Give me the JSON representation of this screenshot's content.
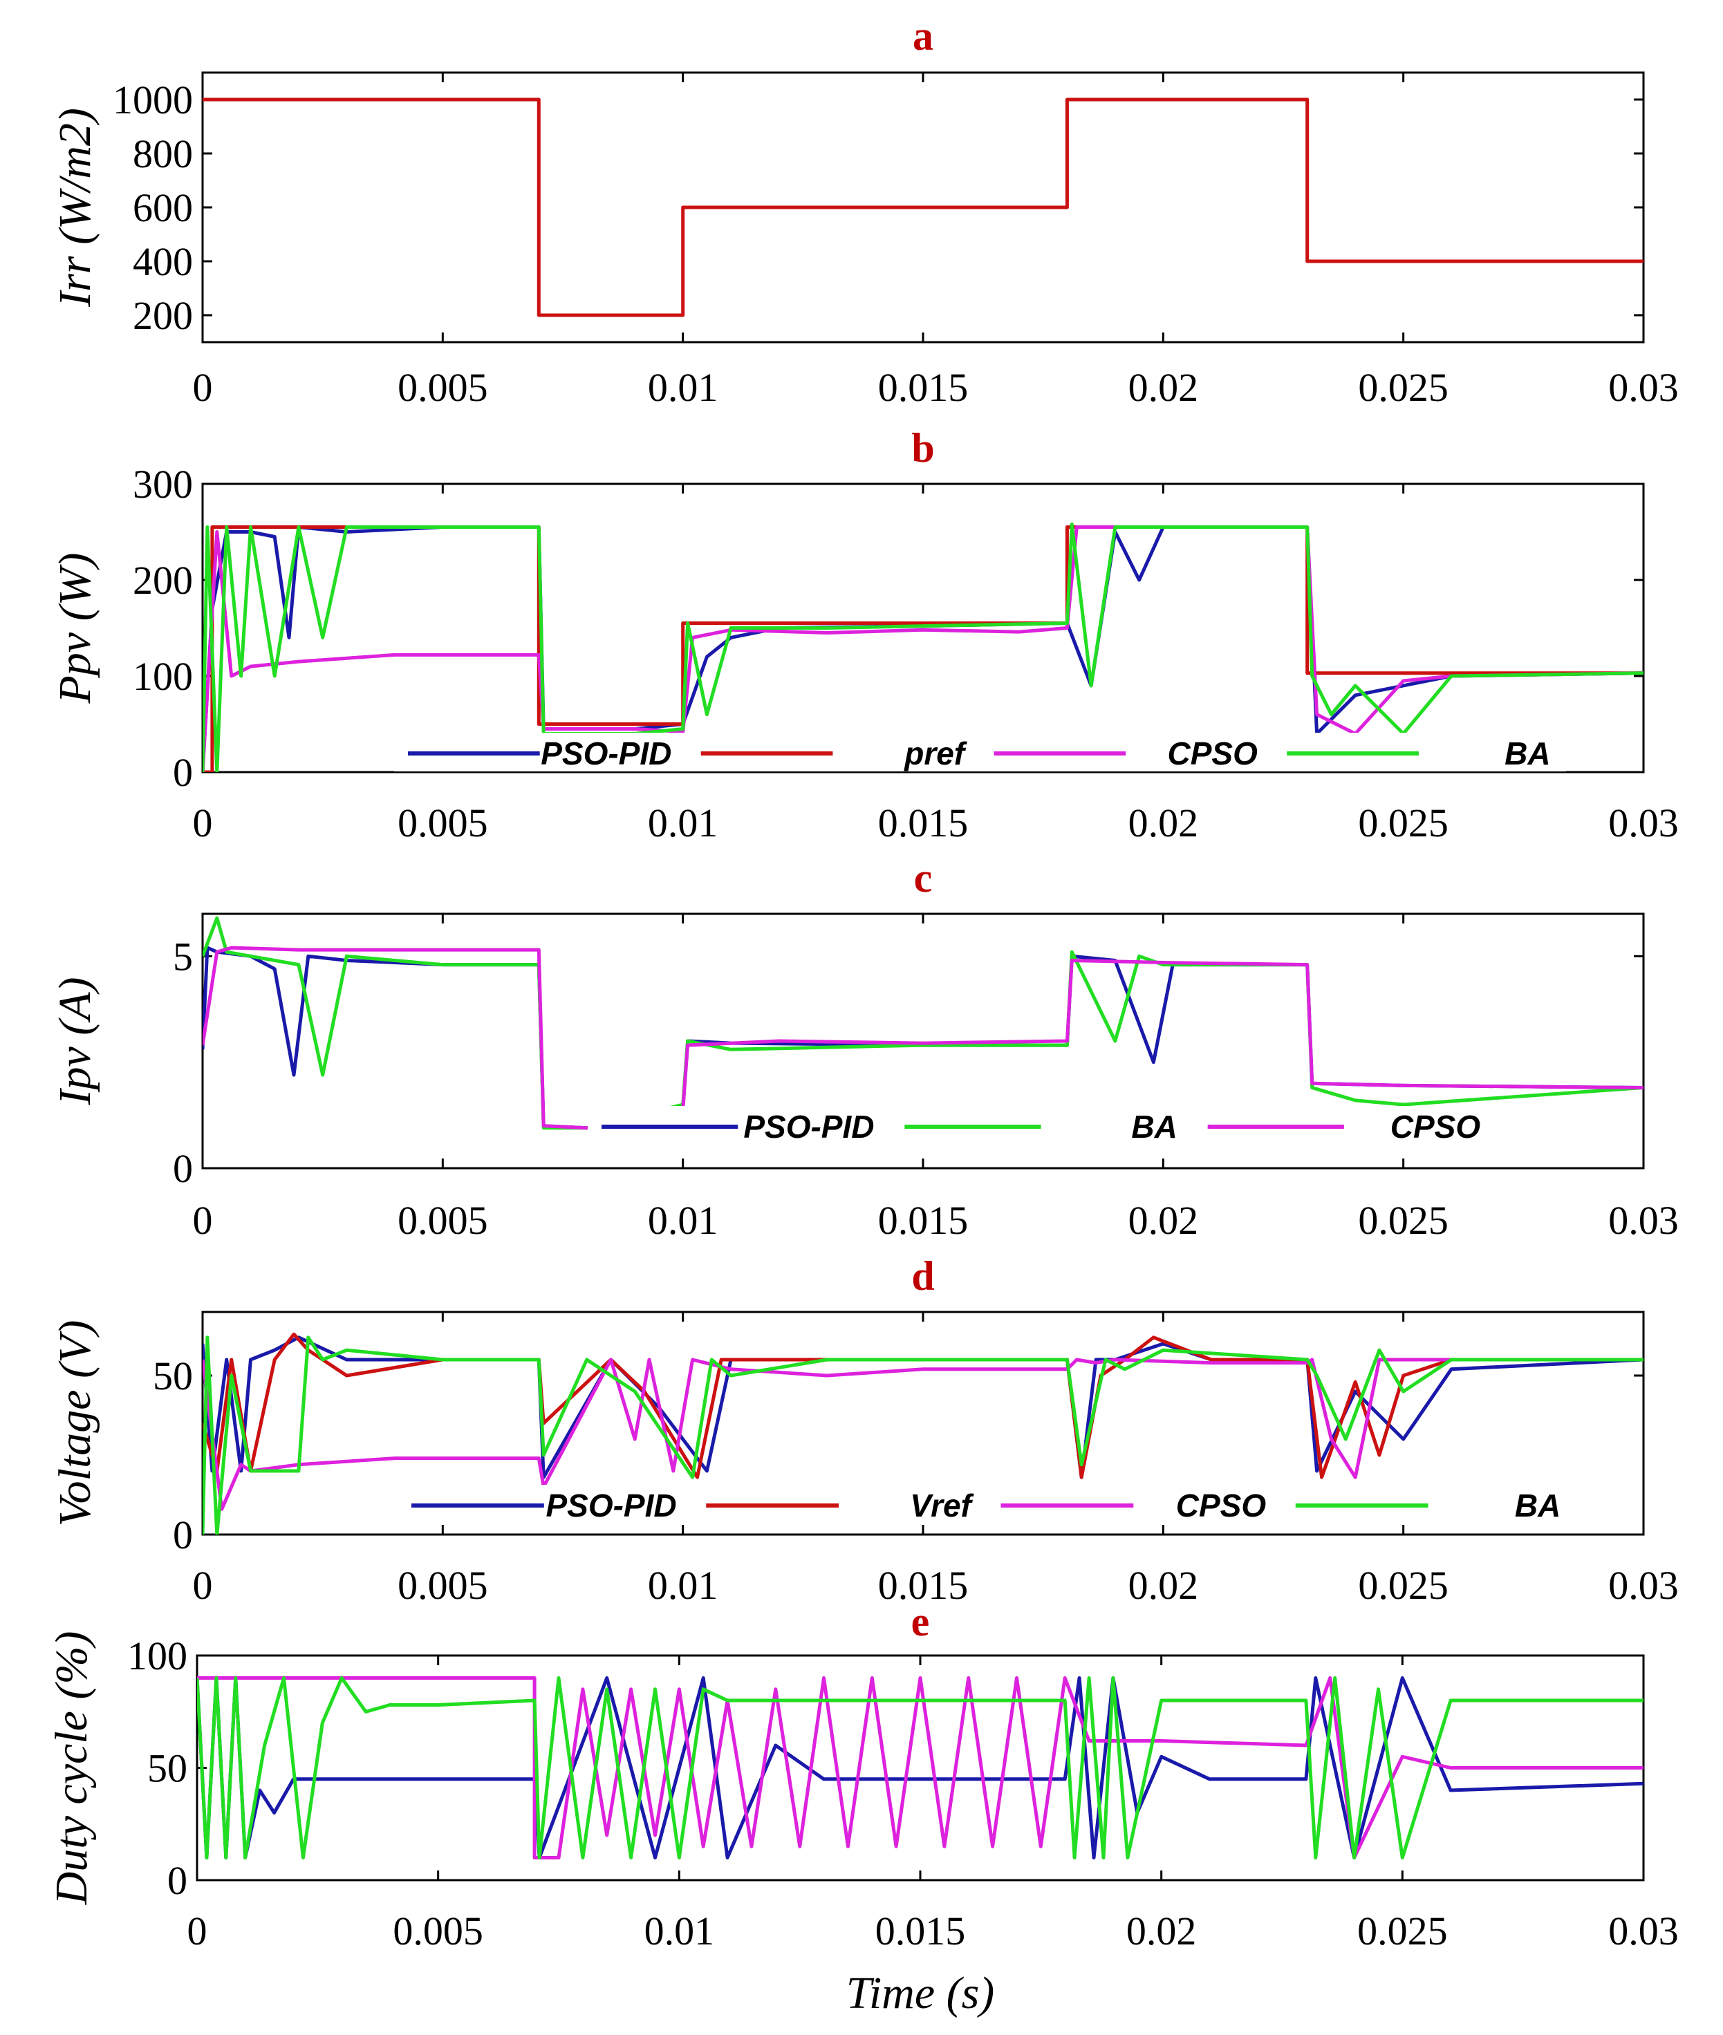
{
  "chart_data": [
    {
      "type": "line",
      "panel": "a",
      "title": "a",
      "xlabel": "",
      "ylabel": "Irr (W/m2)",
      "xlim": [
        0,
        0.03
      ],
      "ylim": [
        100,
        1100
      ],
      "xticks": [
        "0",
        "0.005",
        "0.01",
        "0.015",
        "0.02",
        "0.025",
        "0.03"
      ],
      "yticks": [
        "200",
        "400",
        "600",
        "800",
        "1000"
      ],
      "series": [
        {
          "name": "Irr",
          "color": "#cc1111",
          "x": [
            0,
            0.007,
            0.007,
            0.01,
            0.01,
            0.018,
            0.018,
            0.023,
            0.023,
            0.03
          ],
          "y": [
            1000,
            1000,
            200,
            200,
            600,
            600,
            1000,
            1000,
            400,
            400
          ]
        }
      ]
    },
    {
      "type": "line",
      "panel": "b",
      "title": "b",
      "xlabel": "",
      "ylabel": "Ppv (W)",
      "xlim": [
        0,
        0.03
      ],
      "ylim": [
        0,
        300
      ],
      "xticks": [
        "0",
        "0.005",
        "0.01",
        "0.015",
        "0.02",
        "0.025",
        "0.03"
      ],
      "yticks": [
        "0",
        "100",
        "200",
        "300"
      ],
      "legend": [
        "PSO-PID",
        "pref",
        "CPSO",
        "BA"
      ],
      "series": [
        {
          "name": "PSO-PID",
          "color": "#1a1aaa",
          "x": [
            0,
            0.0002,
            0.0005,
            0.001,
            0.0015,
            0.0018,
            0.002,
            0.003,
            0.005,
            0.007,
            0.0071,
            0.009,
            0.01,
            0.0105,
            0.011,
            0.012,
            0.015,
            0.018,
            0.0185,
            0.019,
            0.0195,
            0.02,
            0.021,
            0.023,
            0.0232,
            0.024,
            0.025,
            0.026,
            0.03
          ],
          "y": [
            0,
            170,
            250,
            250,
            245,
            140,
            255,
            250,
            255,
            255,
            45,
            45,
            50,
            120,
            140,
            150,
            152,
            155,
            90,
            250,
            200,
            255,
            255,
            255,
            40,
            80,
            90,
            100,
            103
          ]
        },
        {
          "name": "pref",
          "color": "#cc1111",
          "x": [
            0,
            0.0002,
            0.0002,
            0.007,
            0.007,
            0.01,
            0.01,
            0.018,
            0.018,
            0.023,
            0.023,
            0.03
          ],
          "y": [
            0,
            0,
            255,
            255,
            50,
            50,
            155,
            155,
            255,
            255,
            103,
            103
          ]
        },
        {
          "name": "CPSO",
          "color": "#dd22dd",
          "x": [
            0,
            0.0003,
            0.0006,
            0.001,
            0.002,
            0.004,
            0.007,
            0.0071,
            0.009,
            0.01,
            0.0102,
            0.011,
            0.013,
            0.015,
            0.017,
            0.018,
            0.0182,
            0.02,
            0.023,
            0.0232,
            0.024,
            0.025,
            0.026,
            0.03
          ],
          "y": [
            0,
            250,
            100,
            110,
            115,
            122,
            122,
            45,
            45,
            42,
            140,
            148,
            145,
            148,
            146,
            150,
            255,
            255,
            255,
            60,
            40,
            95,
            100,
            103
          ]
        },
        {
          "name": "BA",
          "color": "#22dd22",
          "x": [
            0,
            0.0001,
            0.0003,
            0.0005,
            0.0008,
            0.001,
            0.0015,
            0.002,
            0.0025,
            0.003,
            0.004,
            0.007,
            0.0071,
            0.009,
            0.01,
            0.0101,
            0.0105,
            0.011,
            0.013,
            0.018,
            0.0181,
            0.0185,
            0.019,
            0.02,
            0.023,
            0.0231,
            0.0235,
            0.024,
            0.025,
            0.026,
            0.03
          ],
          "y": [
            0,
            255,
            0,
            255,
            100,
            255,
            100,
            255,
            140,
            255,
            255,
            255,
            40,
            40,
            45,
            155,
            60,
            150,
            150,
            155,
            258,
            90,
            255,
            255,
            255,
            100,
            60,
            90,
            40,
            100,
            103
          ]
        }
      ]
    },
    {
      "type": "line",
      "panel": "c",
      "title": "c",
      "xlabel": "",
      "ylabel": "Ipv  (A)",
      "xlim": [
        0,
        0.03
      ],
      "ylim": [
        0,
        6
      ],
      "xticks": [
        "0",
        "0.005",
        "0.01",
        "0.015",
        "0.02",
        "0.025",
        "0.03"
      ],
      "yticks": [
        "0",
        "5"
      ],
      "legend": [
        "PSO-PID",
        "BA",
        "CPSO"
      ],
      "series": [
        {
          "name": "PSO-PID",
          "color": "#1a1aaa",
          "x": [
            0,
            0.0001,
            0.0003,
            0.001,
            0.0015,
            0.0019,
            0.0022,
            0.003,
            0.005,
            0.007,
            0.0071,
            0.008,
            0.01,
            0.0101,
            0.011,
            0.015,
            0.018,
            0.0181,
            0.019,
            0.0198,
            0.0202,
            0.021,
            0.023,
            0.0231,
            0.025,
            0.03
          ],
          "y": [
            2.8,
            5.2,
            5.1,
            5.0,
            4.7,
            2.2,
            5.0,
            4.9,
            4.8,
            4.8,
            1.0,
            0.95,
            1.4,
            3.0,
            2.95,
            2.9,
            2.9,
            5.0,
            4.9,
            2.5,
            4.8,
            4.8,
            4.8,
            2.0,
            1.95,
            1.9
          ]
        },
        {
          "name": "BA",
          "color": "#22dd22",
          "x": [
            0,
            0.0003,
            0.0005,
            0.001,
            0.002,
            0.0025,
            0.003,
            0.005,
            0.007,
            0.0071,
            0.008,
            0.01,
            0.0101,
            0.011,
            0.015,
            0.018,
            0.0181,
            0.019,
            0.0195,
            0.02,
            0.023,
            0.0231,
            0.024,
            0.025,
            0.03
          ],
          "y": [
            5.0,
            5.9,
            5.1,
            5.0,
            4.8,
            2.2,
            5.0,
            4.8,
            4.8,
            0.95,
            0.95,
            1.5,
            3.0,
            2.8,
            2.9,
            2.9,
            5.1,
            3.0,
            5.0,
            4.8,
            4.8,
            1.9,
            1.6,
            1.5,
            1.9
          ]
        },
        {
          "name": "CPSO",
          "color": "#dd22dd",
          "x": [
            0,
            0.0003,
            0.0006,
            0.002,
            0.005,
            0.007,
            0.0071,
            0.008,
            0.01,
            0.0101,
            0.012,
            0.015,
            0.018,
            0.0181,
            0.02,
            0.023,
            0.0231,
            0.025,
            0.03
          ],
          "y": [
            2.9,
            5.1,
            5.2,
            5.15,
            5.15,
            5.15,
            1.0,
            0.95,
            1.4,
            2.9,
            3.0,
            2.95,
            3.0,
            4.9,
            4.85,
            4.8,
            2.0,
            1.95,
            1.9
          ]
        }
      ]
    },
    {
      "type": "line",
      "panel": "d",
      "title": "d",
      "xlabel": "",
      "ylabel": "Voltage (V)",
      "xlim": [
        0,
        0.03
      ],
      "ylim": [
        0,
        70
      ],
      "xticks": [
        "0",
        "0.005",
        "0.01",
        "0.015",
        "0.02",
        "0.025",
        "0.03"
      ],
      "yticks": [
        "0",
        "50"
      ],
      "legend": [
        "PSO-PID",
        "Vref",
        "CPSO",
        "BA"
      ],
      "series": [
        {
          "name": "PSO-PID",
          "color": "#1a1aaa",
          "x": [
            0,
            0.0002,
            0.0005,
            0.0008,
            0.001,
            0.0015,
            0.002,
            0.003,
            0.005,
            0.007,
            0.0071,
            0.0085,
            0.0095,
            0.0105,
            0.011,
            0.013,
            0.018,
            0.0183,
            0.0186,
            0.019,
            0.02,
            0.021,
            0.023,
            0.0232,
            0.024,
            0.025,
            0.026,
            0.03
          ],
          "y": [
            60,
            20,
            55,
            20,
            55,
            58,
            62,
            55,
            55,
            55,
            18,
            55,
            40,
            20,
            55,
            55,
            55,
            18,
            55,
            55,
            60,
            55,
            55,
            20,
            45,
            30,
            52,
            55
          ]
        },
        {
          "name": "Vref",
          "color": "#cc1111",
          "x": [
            0,
            0.0003,
            0.0006,
            0.001,
            0.0015,
            0.0019,
            0.0022,
            0.003,
            0.005,
            0.007,
            0.0071,
            0.0085,
            0.0092,
            0.0103,
            0.0108,
            0.013,
            0.018,
            0.0183,
            0.0187,
            0.0192,
            0.0198,
            0.021,
            0.023,
            0.0233,
            0.024,
            0.0245,
            0.025,
            0.026,
            0.03
          ],
          "y": [
            35,
            20,
            55,
            20,
            55,
            63,
            58,
            50,
            55,
            55,
            35,
            55,
            45,
            18,
            55,
            55,
            55,
            18,
            50,
            55,
            62,
            55,
            55,
            18,
            48,
            25,
            50,
            55,
            55
          ]
        },
        {
          "name": "CPSO",
          "color": "#dd22dd",
          "x": [
            0,
            0.0004,
            0.0008,
            0.001,
            0.002,
            0.004,
            0.007,
            0.0071,
            0.0085,
            0.009,
            0.0093,
            0.0098,
            0.0102,
            0.011,
            0.013,
            0.015,
            0.018,
            0.0182,
            0.0186,
            0.019,
            0.021,
            0.023,
            0.0231,
            0.0235,
            0.024,
            0.0245,
            0.026,
            0.03
          ],
          "y": [
            55,
            8,
            22,
            20,
            22,
            24,
            24,
            15,
            55,
            30,
            55,
            20,
            55,
            52,
            50,
            52,
            52,
            55,
            54,
            55,
            54,
            54,
            55,
            30,
            18,
            55,
            55,
            55
          ]
        },
        {
          "name": "BA",
          "color": "#22dd22",
          "x": [
            0,
            0.0001,
            0.0003,
            0.0006,
            0.001,
            0.002,
            0.0022,
            0.0025,
            0.003,
            0.005,
            0.007,
            0.0071,
            0.008,
            0.009,
            0.0102,
            0.0106,
            0.011,
            0.013,
            0.018,
            0.0183,
            0.0188,
            0.0192,
            0.02,
            0.023,
            0.0232,
            0.0238,
            0.0245,
            0.025,
            0.026,
            0.03
          ],
          "y": [
            0,
            62,
            0,
            50,
            20,
            20,
            62,
            55,
            58,
            55,
            55,
            25,
            55,
            45,
            18,
            55,
            50,
            55,
            55,
            22,
            55,
            52,
            58,
            55,
            50,
            30,
            58,
            45,
            55,
            55
          ]
        }
      ]
    },
    {
      "type": "line",
      "panel": "e",
      "title": "e",
      "xlabel": "Time (s)",
      "ylabel": "Duty cycle (%)",
      "xlim": [
        0,
        0.03
      ],
      "ylim": [
        0,
        100
      ],
      "xticks": [
        "0",
        "0.005",
        "0.01",
        "0.015",
        "0.02",
        "0.025",
        "0.03"
      ],
      "yticks": [
        "0",
        "50",
        "100"
      ],
      "series": [
        {
          "name": "PSO-PID",
          "color": "#1a1aaa",
          "x": [
            0,
            0.0002,
            0.0004,
            0.0006,
            0.0008,
            0.001,
            0.0013,
            0.0016,
            0.002,
            0.003,
            0.007,
            0.0071,
            0.0085,
            0.0095,
            0.0105,
            0.011,
            0.012,
            0.013,
            0.018,
            0.0183,
            0.0186,
            0.019,
            0.0195,
            0.02,
            0.021,
            0.023,
            0.0232,
            0.024,
            0.025,
            0.026,
            0.03
          ],
          "y": [
            90,
            10,
            90,
            10,
            90,
            10,
            40,
            30,
            45,
            45,
            45,
            10,
            90,
            10,
            90,
            10,
            60,
            45,
            45,
            90,
            10,
            90,
            30,
            55,
            45,
            45,
            90,
            10,
            90,
            40,
            43
          ]
        },
        {
          "name": "CPSO",
          "color": "#dd22dd",
          "x": [
            0,
            0.0003,
            0.0003,
            0.007,
            0.007,
            0.0075,
            0.008,
            0.0085,
            0.009,
            0.0095,
            0.01,
            0.0105,
            0.011,
            0.0115,
            0.012,
            0.0125,
            0.013,
            0.0135,
            0.014,
            0.0145,
            0.015,
            0.0155,
            0.016,
            0.0165,
            0.017,
            0.0175,
            0.018,
            0.0185,
            0.02,
            0.023,
            0.0235,
            0.024,
            0.025,
            0.026,
            0.03
          ],
          "y": [
            90,
            90,
            90,
            90,
            10,
            10,
            85,
            20,
            85,
            20,
            85,
            15,
            80,
            15,
            85,
            15,
            90,
            15,
            90,
            15,
            90,
            15,
            90,
            15,
            90,
            15,
            90,
            62,
            62,
            60,
            90,
            10,
            55,
            50,
            50
          ]
        },
        {
          "name": "BA",
          "color": "#22dd22",
          "x": [
            0,
            0.0002,
            0.0004,
            0.0006,
            0.0008,
            0.001,
            0.0014,
            0.0018,
            0.0022,
            0.0026,
            0.003,
            0.0035,
            0.004,
            0.005,
            0.007,
            0.0071,
            0.0075,
            0.008,
            0.0085,
            0.009,
            0.0095,
            0.01,
            0.0105,
            0.011,
            0.012,
            0.014,
            0.018,
            0.0182,
            0.0185,
            0.0188,
            0.019,
            0.0193,
            0.02,
            0.023,
            0.0232,
            0.0236,
            0.024,
            0.0245,
            0.025,
            0.026,
            0.027,
            0.03
          ],
          "y": [
            90,
            10,
            90,
            10,
            90,
            10,
            60,
            90,
            10,
            70,
            90,
            75,
            78,
            78,
            80,
            10,
            90,
            10,
            85,
            10,
            85,
            10,
            85,
            80,
            80,
            80,
            80,
            10,
            90,
            10,
            90,
            10,
            80,
            80,
            10,
            90,
            10,
            85,
            10,
            80,
            80,
            80
          ]
        }
      ]
    }
  ]
}
